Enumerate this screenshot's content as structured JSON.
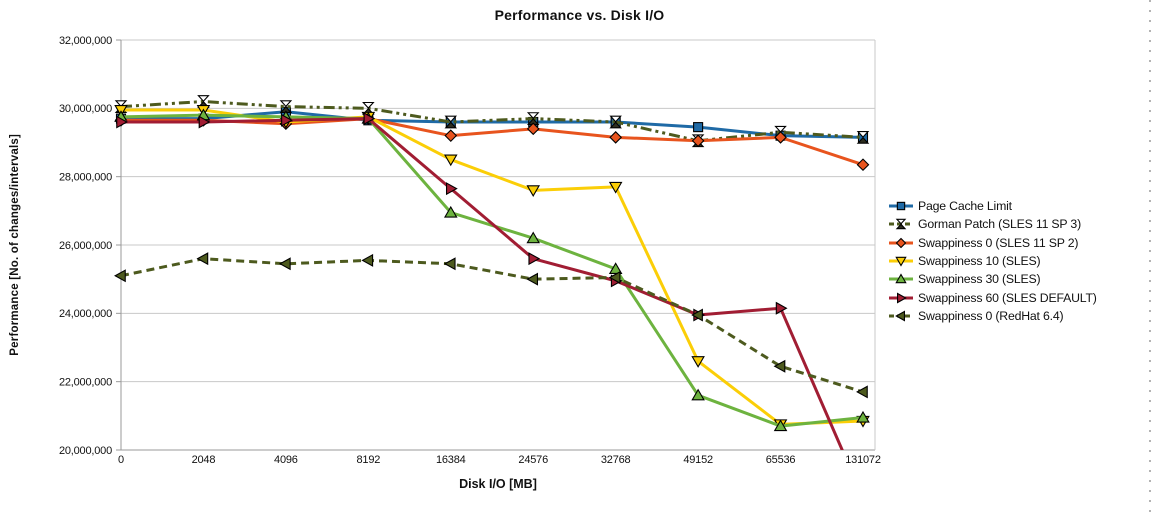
{
  "page": {
    "background_color": "#ffffff",
    "edge_dotted_border_color": "#b3b3b3"
  },
  "chart_data": {
    "type": "line",
    "title": "Performance vs. Disk I/O",
    "xlabel": "Disk I/O [MB]",
    "ylabel": "Performance [No. of changes/intervals]",
    "categories": [
      "0",
      "2048",
      "4096",
      "8192",
      "16384",
      "24576",
      "32768",
      "49152",
      "65536",
      "131072"
    ],
    "ylim": [
      20000000,
      32000000
    ],
    "ytick_interval": 2000000,
    "ytick_labels": [
      "20,000,000",
      "22,000,000",
      "24,000,000",
      "26,000,000",
      "28,000,000",
      "30,000,000",
      "32,000,000"
    ],
    "grid": "horizontal-only",
    "gridline_color": "#c8c8c8",
    "axis_color": "#999999",
    "legend_position": "right-middle",
    "notes": "Swappiness 60 (SLES DEFAULT) line drops below the 20,000,000 axis minimum between 65536 and 131072 and is clipped at the plot bottom.",
    "series": [
      {
        "name": "Page Cache Limit",
        "color": "#1f6aa6",
        "marker": "square",
        "line": "solid",
        "values": [
          29700000,
          29700000,
          29900000,
          29650000,
          29600000,
          29600000,
          29600000,
          29450000,
          29200000,
          29150000
        ]
      },
      {
        "name": "Gorman Patch (SLES 11 SP 3)",
        "color": "#4d5a1e",
        "marker": "hourglass",
        "line": "dashdot",
        "values": [
          30050000,
          30200000,
          30050000,
          30000000,
          29600000,
          29700000,
          29600000,
          29050000,
          29300000,
          29150000
        ]
      },
      {
        "name": "Swappiness 0 (SLES 11 SP 2)",
        "color": "#e8541e",
        "marker": "diamond",
        "line": "solid",
        "values": [
          29650000,
          29650000,
          29550000,
          29700000,
          29200000,
          29400000,
          29150000,
          29050000,
          29150000,
          28350000
        ]
      },
      {
        "name": "Swappiness 10 (SLES)",
        "color": "#fbce07",
        "marker": "triangle-down",
        "line": "solid",
        "values": [
          29950000,
          29950000,
          29600000,
          29750000,
          28500000,
          27600000,
          27700000,
          22600000,
          20750000,
          20850000
        ]
      },
      {
        "name": "Swappiness 30 (SLES)",
        "color": "#6db33f",
        "marker": "triangle-up",
        "line": "solid",
        "values": [
          29750000,
          29800000,
          29750000,
          29700000,
          26950000,
          26200000,
          25300000,
          21600000,
          20700000,
          20950000
        ]
      },
      {
        "name": "Swappiness 60 (SLES DEFAULT)",
        "color": "#a11d33",
        "marker": "triangle-right",
        "line": "solid",
        "values": [
          29600000,
          29600000,
          29650000,
          29700000,
          27650000,
          25600000,
          24950000,
          23950000,
          24150000,
          18600000
        ]
      },
      {
        "name": "Swappiness 0 (RedHat 6.4)",
        "color": "#4d5a1e",
        "marker": "triangle-left",
        "line": "dashed",
        "values": [
          25100000,
          25600000,
          25450000,
          25550000,
          25450000,
          25000000,
          25050000,
          23950000,
          22450000,
          21700000
        ]
      }
    ]
  }
}
